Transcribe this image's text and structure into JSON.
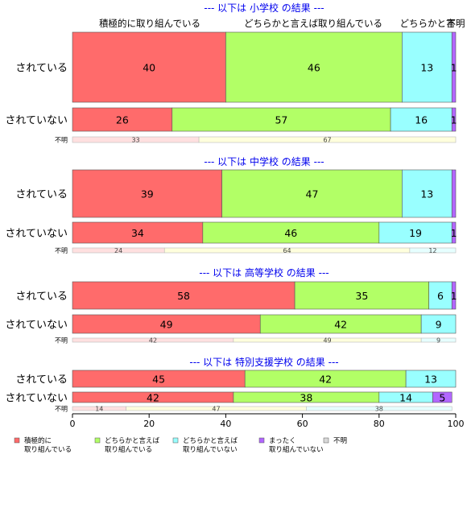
{
  "chart_data": {
    "type": "bar",
    "orientation": "horizontal",
    "stacked": true,
    "xlim": [
      0,
      100
    ],
    "x_ticks": [
      0,
      20,
      40,
      60,
      80,
      100
    ],
    "category_headers": [
      "積極的に取り組んでいる",
      "どちらかと言えば取り組んでいる",
      "どちらかと言",
      "不明"
    ],
    "legend": [
      {
        "lines": [
          "積極的に",
          "取り組んでいる"
        ],
        "color": "#ff6b6b"
      },
      {
        "lines": [
          "どちらかと言えば",
          "取り組んでいる"
        ],
        "color": "#b2ff66"
      },
      {
        "lines": [
          "どちらかと言えば",
          "取り組んでいない"
        ],
        "color": "#99ffff"
      },
      {
        "lines": [
          "まったく",
          "取り組んでいない"
        ],
        "color": "#b266ff"
      },
      {
        "lines": [
          "不明"
        ],
        "color": "#d9d9d9"
      }
    ],
    "groups": [
      {
        "title": "--- 以下は 小学校 の結果 ---",
        "rows": [
          {
            "label": "されている",
            "values": [
              40,
              46,
              13,
              1
            ],
            "labels": [
              "40",
              "46",
              "13",
              "1"
            ]
          },
          {
            "label": "されていない",
            "values": [
              26,
              57,
              16,
              1
            ],
            "labels": [
              "26",
              "57",
              "16",
              "1"
            ]
          },
          {
            "label": "不明",
            "values": [
              33,
              67,
              0,
              0
            ],
            "labels": [
              "33",
              "67",
              "",
              ""
            ]
          }
        ]
      },
      {
        "title": "--- 以下は 中学校 の結果 ---",
        "rows": [
          {
            "label": "されている",
            "values": [
              39,
              47,
              13,
              1
            ],
            "labels": [
              "39",
              "47",
              "13",
              ""
            ]
          },
          {
            "label": "されていない",
            "values": [
              34,
              46,
              19,
              1
            ],
            "labels": [
              "34",
              "46",
              "19",
              "1"
            ]
          },
          {
            "label": "不明",
            "values": [
              24,
              64,
              12,
              0
            ],
            "labels": [
              "24",
              "64",
              "12",
              ""
            ]
          }
        ]
      },
      {
        "title": "--- 以下は 高等学校 の結果 ---",
        "rows": [
          {
            "label": "されている",
            "values": [
              58,
              35,
              6,
              1
            ],
            "labels": [
              "58",
              "35",
              "6",
              "1"
            ]
          },
          {
            "label": "されていない",
            "values": [
              49,
              42,
              9,
              0
            ],
            "labels": [
              "49",
              "42",
              "9",
              ""
            ]
          },
          {
            "label": "不明",
            "values": [
              42,
              49,
              9,
              0
            ],
            "labels": [
              "42",
              "49",
              "9",
              ""
            ]
          }
        ]
      },
      {
        "title": "--- 以下は 特別支援学校 の結果 ---",
        "rows": [
          {
            "label": "されている",
            "values": [
              45,
              42,
              13,
              0
            ],
            "labels": [
              "45",
              "42",
              "13",
              ""
            ]
          },
          {
            "label": "されていない",
            "values": [
              42,
              38,
              14,
              5
            ],
            "labels": [
              "42",
              "38",
              "14",
              "5"
            ]
          },
          {
            "label": "不明",
            "values": [
              14,
              47,
              38,
              0
            ],
            "labels": [
              "14",
              "47",
              "38",
              ""
            ]
          }
        ]
      }
    ]
  }
}
